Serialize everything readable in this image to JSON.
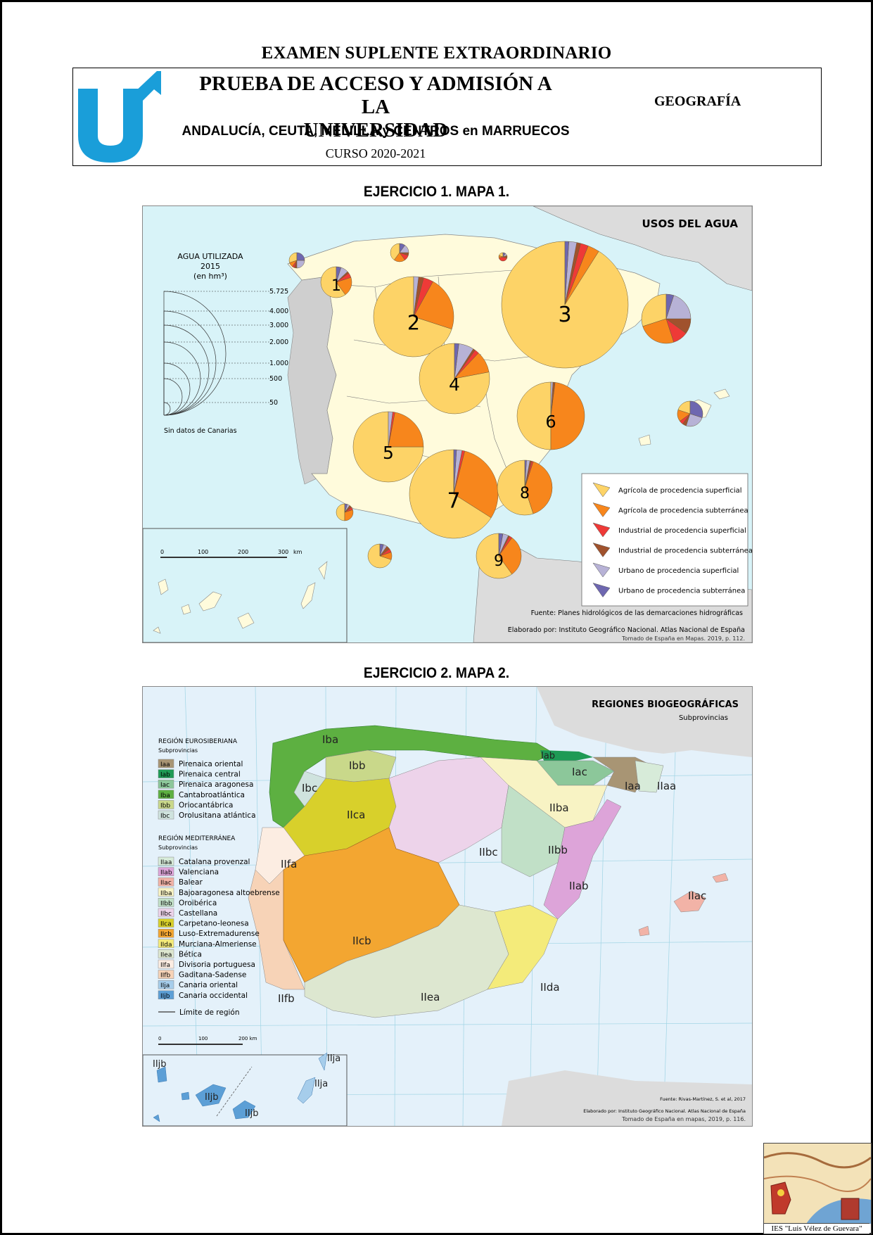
{
  "exam_title": "EXAMEN SUPLENTE EXTRAORDINARIO",
  "header": {
    "title_line1": "PRUEBA DE ACCESO Y ADMISIÓN A LA",
    "title_line2": "UNIVERSIDAD",
    "regions": "ANDALUCÍA, CEUTA, MELILLA y CENTROS en MARRUECOS",
    "course": "CURSO 2020-2021",
    "subject": "GEOGRAFÍA"
  },
  "exercise1": {
    "title": "EJERCICIO 1. MAPA 1.",
    "map_title": "USOS DEL AGUA",
    "scale_title": "AGUA UTILIZADA",
    "scale_year": "2015",
    "scale_unit": "(en hm³)",
    "scale_values": [
      "5.725",
      "4.000",
      "3.000",
      "2.000",
      "1.000",
      "500",
      "50"
    ],
    "no_data": "Sin datos de Canarias",
    "km_scale": [
      "0",
      "100",
      "200",
      "300",
      "km"
    ],
    "basin_numbers": [
      "1",
      "2",
      "3",
      "4",
      "5",
      "6",
      "7",
      "8",
      "9"
    ],
    "legend": [
      {
        "label": "Agrícola de procedencia superficial",
        "color": "#FDD367"
      },
      {
        "label": "Agrícola de procedencia subterránea",
        "color": "#F7861C"
      },
      {
        "label": "Industrial de procedencia superficial",
        "color": "#EE3A37"
      },
      {
        "label": "Industrial de procedencia subterránea",
        "color": "#A0522D"
      },
      {
        "label": "Urbano de procedencia superficial",
        "color": "#B7B2D6"
      },
      {
        "label": "Urbano de procedencia subterránea",
        "color": "#6E67B0"
      }
    ],
    "source": "Fuente: Planes hidrológicos de las demarcaciones hidrográficas",
    "credit": "Elaborado por: Instituto Geográfico Nacional. Atlas Nacional de España",
    "taken_from": "Tomado de España en Mapas. 2019, p. 112."
  },
  "exercise2": {
    "title": "EJERCICIO 2. MAPA 2.",
    "map_title": "REGIONES BIOGEOGRÁFICAS",
    "map_subtitle": "Subprovincias",
    "region_euro": "REGIÓN EUROSIBERIANA",
    "region_euro_sub": "Subprovincias",
    "euro_items": [
      {
        "code": "Iaa",
        "label": "Pirenaica oriental",
        "color": "#A89574"
      },
      {
        "code": "Iab",
        "label": "Pirenaica central",
        "color": "#1E9A55"
      },
      {
        "code": "Iac",
        "label": "Pirenaica aragonesa",
        "color": "#8CC79A"
      },
      {
        "code": "Iba",
        "label": "Cantabroatlántica",
        "color": "#5DB041"
      },
      {
        "code": "Ibb",
        "label": "Oriocantábrica",
        "color": "#C9D88A"
      },
      {
        "code": "Ibc",
        "label": "Orolusitana atlántica",
        "color": "#CFE3DE"
      }
    ],
    "region_med": "REGIÓN MEDITERRÁNEA",
    "region_med_sub": "Subprovincias",
    "med_items": [
      {
        "code": "IIaa",
        "label": "Catalana provenzal",
        "color": "#D7EBD9"
      },
      {
        "code": "IIab",
        "label": "Valenciana",
        "color": "#DDA4D9"
      },
      {
        "code": "IIac",
        "label": "Balear",
        "color": "#F2B3A7"
      },
      {
        "code": "IIba",
        "label": "Bajoaragonesa altoebrense",
        "color": "#F8F3C4"
      },
      {
        "code": "IIbb",
        "label": "Oroibérica",
        "color": "#C1E0C7"
      },
      {
        "code": "IIbc",
        "label": "Castellana",
        "color": "#EDD3EA"
      },
      {
        "code": "IIca",
        "label": "Carpetano-leonesa",
        "color": "#D8D02B"
      },
      {
        "code": "IIcb",
        "label": "Luso-Extremadurense",
        "color": "#F3A631"
      },
      {
        "code": "IIda",
        "label": "Murciana-Almeriense",
        "color": "#F4EB7A"
      },
      {
        "code": "IIea",
        "label": "Bética",
        "color": "#DDE7D0"
      },
      {
        "code": "IIfa",
        "label": "Divisoria portuguesa",
        "color": "#FCEDE2"
      },
      {
        "code": "IIfb",
        "label": "Gaditana-Sadense",
        "color": "#F7D3B7"
      },
      {
        "code": "IIja",
        "label": "Canaria oriental",
        "color": "#A6CDEB"
      },
      {
        "code": "IIjb",
        "label": "Canaria occidental",
        "color": "#5C9FD6"
      }
    ],
    "limit_label": "Límite de región",
    "km_scale": [
      "0",
      "100",
      "200 km"
    ],
    "source": "Fuente: Rivas-Martínez, S. et al, 2017",
    "credit": "Elaborado por: Instituto Geográfico Nacional. Atlas Nacional de España",
    "taken_from": "Tomado de España en mapas, 2019, p. 116."
  },
  "seal_label": "IES \"Luis Vélez de Guevara\""
}
